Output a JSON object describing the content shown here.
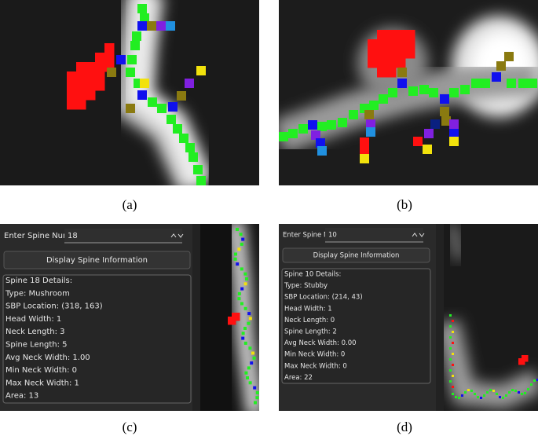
{
  "panels": [
    {
      "caption": "(a)"
    },
    {
      "caption": "(b)"
    },
    {
      "caption": "(c)",
      "label": "Enter Spine Number",
      "input": "18",
      "button": "Display Spine Information",
      "details": [
        "Spine 18 Details:",
        "Type: Mushroom",
        "SBP Location: (318, 163)",
        "Head Width: 1",
        "Neck Length: 3",
        "Spine Length: 5",
        "Avg Neck Width: 1.00",
        "Min Neck Width: 0",
        "Max Neck Width: 1",
        "Area: 13"
      ]
    },
    {
      "caption": "(d)",
      "label": "Enter Spine Number",
      "input": "10",
      "button": "Display Spine Information",
      "details": [
        "Spine 10 Details:",
        "Type: Stubby",
        "SBP Location: (214, 43)",
        "Head Width: 1",
        "Neck Length: 0",
        "Spine Length: 2",
        "Avg Neck Width: 0.00",
        "Min Neck Width: 0",
        "Max Neck Width: 0",
        "Area: 22"
      ]
    }
  ]
}
